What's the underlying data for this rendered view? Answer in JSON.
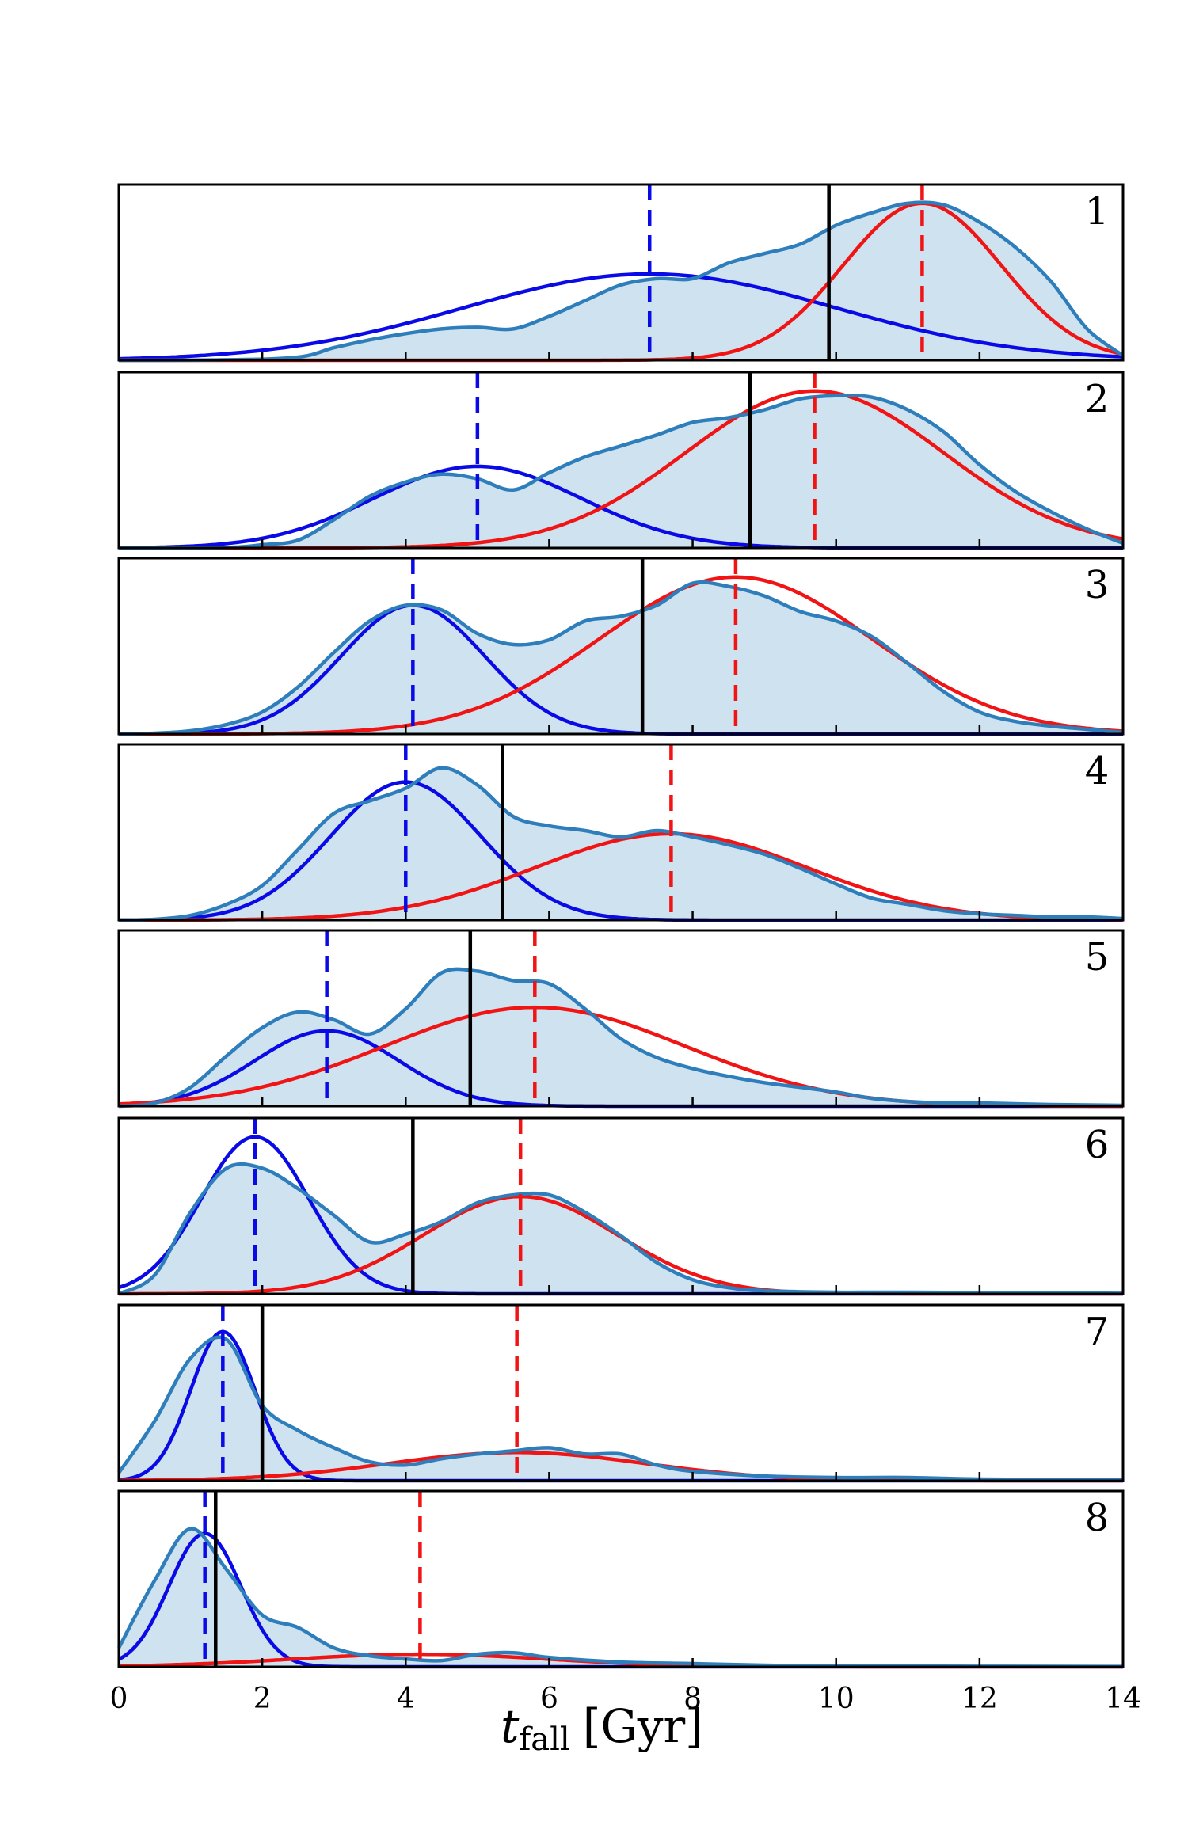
{
  "chart_data": {
    "type": "area",
    "xlabel": {
      "italic": "t",
      "sub": "fall",
      "unit": "[Gyr]"
    },
    "xlim": [
      0,
      14
    ],
    "xticks": [
      "0",
      "2",
      "4",
      "6",
      "8",
      "10",
      "12",
      "14"
    ],
    "colors": {
      "kde": "#2e7ebc",
      "kde_fill": "#cfe2ef",
      "early": "#0a0ae6",
      "late": "#f01414",
      "median": "#000000"
    },
    "panels": [
      {
        "label": "1",
        "ymax": 1.12,
        "median": 9.9,
        "early": {
          "mu": 7.4,
          "sigma": 2.6,
          "amp": 0.55
        },
        "late": {
          "mu": 11.2,
          "sigma": 1.1,
          "amp": 1.0
        },
        "kde": [
          [
            0,
            0
          ],
          [
            1.5,
            0.003
          ],
          [
            2.5,
            0.02
          ],
          [
            3,
            0.08
          ],
          [
            3.5,
            0.13
          ],
          [
            4,
            0.17
          ],
          [
            4.5,
            0.2
          ],
          [
            5,
            0.21
          ],
          [
            5.5,
            0.2
          ],
          [
            6,
            0.28
          ],
          [
            6.5,
            0.38
          ],
          [
            7,
            0.48
          ],
          [
            7.5,
            0.52
          ],
          [
            8,
            0.52
          ],
          [
            8.5,
            0.62
          ],
          [
            9,
            0.68
          ],
          [
            9.5,
            0.74
          ],
          [
            10,
            0.86
          ],
          [
            10.5,
            0.94
          ],
          [
            11,
            1.0
          ],
          [
            11.5,
            0.99
          ],
          [
            12,
            0.88
          ],
          [
            12.5,
            0.72
          ],
          [
            13,
            0.5
          ],
          [
            13.5,
            0.2
          ],
          [
            14,
            0.03
          ]
        ]
      },
      {
        "label": "2",
        "ymax": 1.12,
        "median": 8.8,
        "early": {
          "mu": 5.0,
          "sigma": 1.45,
          "amp": 0.52
        },
        "late": {
          "mu": 9.7,
          "sigma": 1.8,
          "amp": 1.0
        },
        "kde": [
          [
            0,
            0
          ],
          [
            1.5,
            0.003
          ],
          [
            2,
            0.02
          ],
          [
            2.5,
            0.05
          ],
          [
            3,
            0.18
          ],
          [
            3.5,
            0.33
          ],
          [
            4,
            0.42
          ],
          [
            4.5,
            0.47
          ],
          [
            5,
            0.44
          ],
          [
            5.5,
            0.37
          ],
          [
            6,
            0.48
          ],
          [
            6.5,
            0.58
          ],
          [
            7,
            0.65
          ],
          [
            7.5,
            0.72
          ],
          [
            8,
            0.8
          ],
          [
            8.5,
            0.83
          ],
          [
            9,
            0.88
          ],
          [
            9.5,
            0.95
          ],
          [
            10,
            0.97
          ],
          [
            10.5,
            0.96
          ],
          [
            11,
            0.88
          ],
          [
            11.5,
            0.74
          ],
          [
            12,
            0.53
          ],
          [
            12.5,
            0.36
          ],
          [
            13,
            0.23
          ],
          [
            13.5,
            0.12
          ],
          [
            14,
            0.03
          ]
        ]
      },
      {
        "label": "3",
        "ymax": 1.12,
        "median": 7.3,
        "early": {
          "mu": 4.1,
          "sigma": 1.0,
          "amp": 0.82
        },
        "late": {
          "mu": 8.6,
          "sigma": 1.9,
          "amp": 1.0
        },
        "kde": [
          [
            0,
            0
          ],
          [
            0.5,
            0.005
          ],
          [
            1,
            0.02
          ],
          [
            1.5,
            0.06
          ],
          [
            2,
            0.14
          ],
          [
            2.5,
            0.3
          ],
          [
            3,
            0.52
          ],
          [
            3.5,
            0.72
          ],
          [
            4,
            0.82
          ],
          [
            4.5,
            0.79
          ],
          [
            5,
            0.64
          ],
          [
            5.5,
            0.57
          ],
          [
            6,
            0.6
          ],
          [
            6.5,
            0.72
          ],
          [
            7,
            0.75
          ],
          [
            7.5,
            0.82
          ],
          [
            8,
            0.96
          ],
          [
            8.5,
            0.94
          ],
          [
            9,
            0.88
          ],
          [
            9.5,
            0.78
          ],
          [
            10,
            0.72
          ],
          [
            10.5,
            0.62
          ],
          [
            11,
            0.45
          ],
          [
            11.5,
            0.27
          ],
          [
            12,
            0.14
          ],
          [
            12.5,
            0.08
          ],
          [
            13,
            0.05
          ],
          [
            13.5,
            0.03
          ],
          [
            14,
            0.01
          ]
        ]
      },
      {
        "label": "4",
        "ymax": 1.12,
        "median": 5.35,
        "early": {
          "mu": 4.0,
          "sigma": 1.05,
          "amp": 0.88
        },
        "late": {
          "mu": 7.7,
          "sigma": 1.9,
          "amp": 0.55
        },
        "kde": [
          [
            0,
            0
          ],
          [
            0.5,
            0.005
          ],
          [
            1,
            0.03
          ],
          [
            1.5,
            0.1
          ],
          [
            2,
            0.22
          ],
          [
            2.5,
            0.45
          ],
          [
            3,
            0.68
          ],
          [
            3.5,
            0.76
          ],
          [
            4,
            0.84
          ],
          [
            4.5,
            0.97
          ],
          [
            5,
            0.86
          ],
          [
            5.5,
            0.66
          ],
          [
            6,
            0.6
          ],
          [
            6.5,
            0.57
          ],
          [
            7,
            0.53
          ],
          [
            7.5,
            0.57
          ],
          [
            8,
            0.53
          ],
          [
            8.5,
            0.48
          ],
          [
            9,
            0.42
          ],
          [
            9.5,
            0.33
          ],
          [
            10,
            0.23
          ],
          [
            10.5,
            0.14
          ],
          [
            11,
            0.1
          ],
          [
            11.5,
            0.06
          ],
          [
            12,
            0.04
          ],
          [
            12.5,
            0.03
          ],
          [
            13,
            0.02
          ],
          [
            13.5,
            0.02
          ],
          [
            14,
            0.01
          ]
        ]
      },
      {
        "label": "5",
        "ymax": 1.12,
        "median": 4.9,
        "early": {
          "mu": 2.9,
          "sigma": 1.0,
          "amp": 0.48
        },
        "late": {
          "mu": 5.8,
          "sigma": 2.1,
          "amp": 0.63
        },
        "kde": [
          [
            0,
            0
          ],
          [
            0.5,
            0.02
          ],
          [
            1,
            0.12
          ],
          [
            1.5,
            0.32
          ],
          [
            2,
            0.5
          ],
          [
            2.5,
            0.6
          ],
          [
            3,
            0.55
          ],
          [
            3.5,
            0.46
          ],
          [
            4,
            0.62
          ],
          [
            4.5,
            0.85
          ],
          [
            5,
            0.86
          ],
          [
            5.5,
            0.8
          ],
          [
            6,
            0.78
          ],
          [
            6.5,
            0.62
          ],
          [
            7,
            0.43
          ],
          [
            7.5,
            0.31
          ],
          [
            8,
            0.24
          ],
          [
            8.5,
            0.19
          ],
          [
            9,
            0.15
          ],
          [
            9.5,
            0.12
          ],
          [
            10,
            0.09
          ],
          [
            10.5,
            0.05
          ],
          [
            11,
            0.03
          ],
          [
            11.5,
            0.02
          ],
          [
            12,
            0.02
          ],
          [
            13,
            0.01
          ],
          [
            14,
            0.005
          ]
        ]
      },
      {
        "label": "6",
        "ymax": 1.12,
        "median": 4.1,
        "early": {
          "mu": 1.9,
          "sigma": 0.75,
          "amp": 1.0
        },
        "late": {
          "mu": 5.6,
          "sigma": 1.35,
          "amp": 0.62
        },
        "kde": [
          [
            0,
            0
          ],
          [
            0.5,
            0.12
          ],
          [
            1,
            0.52
          ],
          [
            1.5,
            0.8
          ],
          [
            2,
            0.8
          ],
          [
            2.5,
            0.67
          ],
          [
            3,
            0.5
          ],
          [
            3.5,
            0.33
          ],
          [
            4,
            0.38
          ],
          [
            4.5,
            0.46
          ],
          [
            5,
            0.58
          ],
          [
            5.5,
            0.63
          ],
          [
            6,
            0.63
          ],
          [
            6.5,
            0.52
          ],
          [
            7,
            0.37
          ],
          [
            7.5,
            0.2
          ],
          [
            8,
            0.09
          ],
          [
            8.5,
            0.04
          ],
          [
            9,
            0.02
          ],
          [
            10,
            0.01
          ],
          [
            11,
            0.01
          ],
          [
            14,
            0.003
          ]
        ]
      },
      {
        "label": "7",
        "ymax": 1.12,
        "median": 2.0,
        "early": {
          "mu": 1.45,
          "sigma": 0.45,
          "amp": 0.95
        },
        "late": {
          "mu": 5.55,
          "sigma": 1.8,
          "amp": 0.18
        },
        "kde": [
          [
            0,
            0.05
          ],
          [
            0.5,
            0.38
          ],
          [
            1,
            0.78
          ],
          [
            1.5,
            0.9
          ],
          [
            2,
            0.48
          ],
          [
            2.5,
            0.32
          ],
          [
            3,
            0.21
          ],
          [
            3.5,
            0.12
          ],
          [
            4,
            0.1
          ],
          [
            4.5,
            0.14
          ],
          [
            5,
            0.17
          ],
          [
            5.5,
            0.19
          ],
          [
            6,
            0.21
          ],
          [
            6.5,
            0.17
          ],
          [
            7,
            0.17
          ],
          [
            7.5,
            0.1
          ],
          [
            8,
            0.06
          ],
          [
            9,
            0.03
          ],
          [
            10,
            0.02
          ],
          [
            11,
            0.02
          ],
          [
            12,
            0.01
          ],
          [
            14,
            0.005
          ]
        ]
      },
      {
        "label": "8",
        "ymax": 1.12,
        "median": 1.35,
        "early": {
          "mu": 1.2,
          "sigma": 0.5,
          "amp": 0.85
        },
        "late": {
          "mu": 4.2,
          "sigma": 1.8,
          "amp": 0.08
        },
        "kde": [
          [
            0,
            0.12
          ],
          [
            0.5,
            0.55
          ],
          [
            1,
            0.88
          ],
          [
            1.5,
            0.62
          ],
          [
            2,
            0.33
          ],
          [
            2.5,
            0.25
          ],
          [
            3,
            0.12
          ],
          [
            3.5,
            0.07
          ],
          [
            4,
            0.05
          ],
          [
            4.5,
            0.04
          ],
          [
            5,
            0.08
          ],
          [
            5.5,
            0.09
          ],
          [
            6,
            0.06
          ],
          [
            7,
            0.03
          ],
          [
            8,
            0.02
          ],
          [
            9,
            0.01
          ],
          [
            10,
            0.005
          ],
          [
            14,
            0.002
          ]
        ]
      }
    ]
  }
}
